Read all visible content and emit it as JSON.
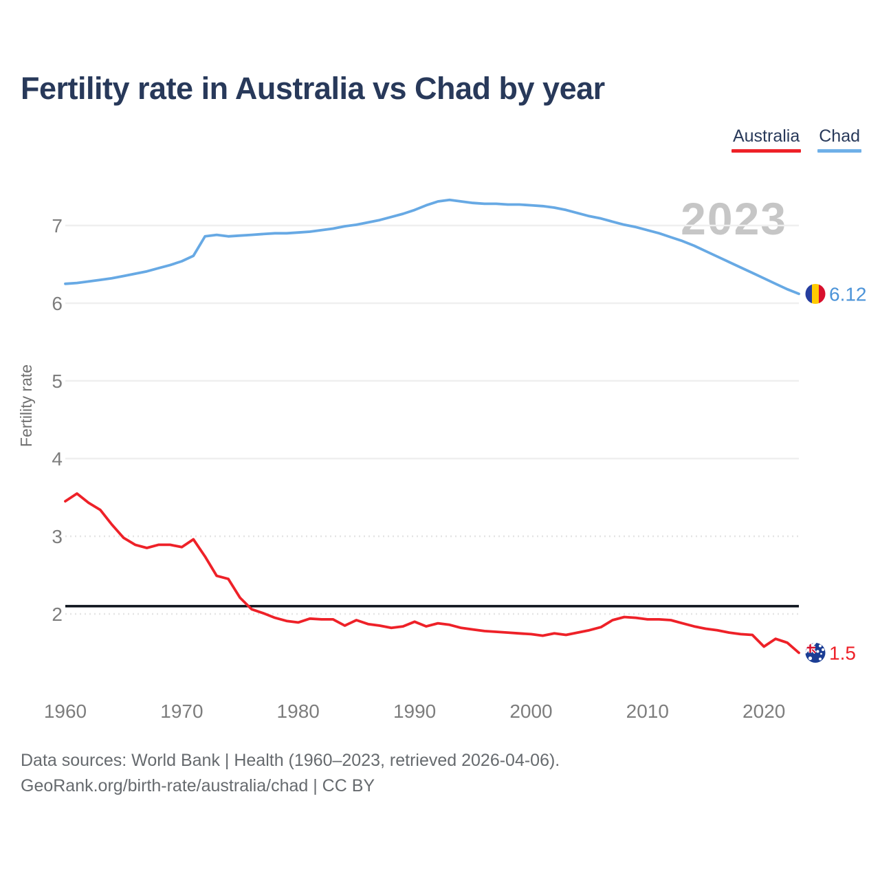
{
  "title": "Fertility rate in Australia vs Chad by year",
  "watermark": "2023",
  "legend": [
    {
      "label": "Australia",
      "color": "#ee2128"
    },
    {
      "label": "Chad",
      "color": "#6fb0e8"
    }
  ],
  "footer": {
    "line1": "Data sources: World Bank | Health (1960–2023, retrieved 2026-04-06).",
    "line2": "GeoRank.org/birth-rate/australia/chad | CC BY"
  },
  "chart_data": {
    "type": "line",
    "title": "Fertility rate in Australia vs Chad by year",
    "xlabel": "",
    "ylabel": "Fertility rate",
    "x_ticks": [
      1960,
      1970,
      1980,
      1990,
      2000,
      2010,
      2020
    ],
    "y_ticks": [
      2,
      3,
      4,
      5,
      6,
      7
    ],
    "xlim": [
      1960,
      2023
    ],
    "ylim": [
      1.35,
      7.55
    ],
    "grid": "horizontal",
    "legend_position": "top-right",
    "annotation_line": {
      "value": 2.1,
      "color": "#10161f"
    },
    "x": [
      1960,
      1961,
      1962,
      1963,
      1964,
      1965,
      1966,
      1967,
      1968,
      1969,
      1970,
      1971,
      1972,
      1973,
      1974,
      1975,
      1976,
      1977,
      1978,
      1979,
      1980,
      1981,
      1982,
      1983,
      1984,
      1985,
      1986,
      1987,
      1988,
      1989,
      1990,
      1991,
      1992,
      1993,
      1994,
      1995,
      1996,
      1997,
      1998,
      1999,
      2000,
      2001,
      2002,
      2003,
      2004,
      2005,
      2006,
      2007,
      2008,
      2009,
      2010,
      2011,
      2012,
      2013,
      2014,
      2015,
      2016,
      2017,
      2018,
      2019,
      2020,
      2021,
      2022,
      2023
    ],
    "series": [
      {
        "name": "Australia",
        "color": "#ee2128",
        "label_color": "#ee2128",
        "end_label": "1.5",
        "flag": "australia",
        "values": [
          3.45,
          3.55,
          3.43,
          3.34,
          3.15,
          2.98,
          2.89,
          2.85,
          2.89,
          2.89,
          2.86,
          2.96,
          2.74,
          2.49,
          2.45,
          2.21,
          2.06,
          2.01,
          1.95,
          1.91,
          1.89,
          1.94,
          1.93,
          1.93,
          1.85,
          1.92,
          1.87,
          1.85,
          1.82,
          1.84,
          1.9,
          1.84,
          1.88,
          1.86,
          1.82,
          1.8,
          1.78,
          1.77,
          1.76,
          1.75,
          1.74,
          1.72,
          1.75,
          1.73,
          1.76,
          1.79,
          1.83,
          1.92,
          1.96,
          1.95,
          1.93,
          1.93,
          1.92,
          1.88,
          1.84,
          1.81,
          1.79,
          1.76,
          1.74,
          1.73,
          1.58,
          1.68,
          1.63,
          1.5
        ]
      },
      {
        "name": "Chad",
        "color": "#67a9e4",
        "label_color": "#4b93d8",
        "end_label": "6.12",
        "flag": "chad",
        "values": [
          6.25,
          6.26,
          6.28,
          6.3,
          6.32,
          6.35,
          6.38,
          6.41,
          6.45,
          6.49,
          6.54,
          6.61,
          6.86,
          6.88,
          6.86,
          6.87,
          6.88,
          6.89,
          6.9,
          6.9,
          6.91,
          6.92,
          6.94,
          6.96,
          6.99,
          7.01,
          7.04,
          7.07,
          7.11,
          7.15,
          7.2,
          7.26,
          7.31,
          7.33,
          7.31,
          7.29,
          7.28,
          7.28,
          7.27,
          7.27,
          7.26,
          7.25,
          7.23,
          7.2,
          7.16,
          7.12,
          7.09,
          7.05,
          7.01,
          6.98,
          6.94,
          6.9,
          6.85,
          6.8,
          6.74,
          6.67,
          6.6,
          6.53,
          6.46,
          6.39,
          6.32,
          6.25,
          6.18,
          6.12
        ]
      }
    ]
  }
}
